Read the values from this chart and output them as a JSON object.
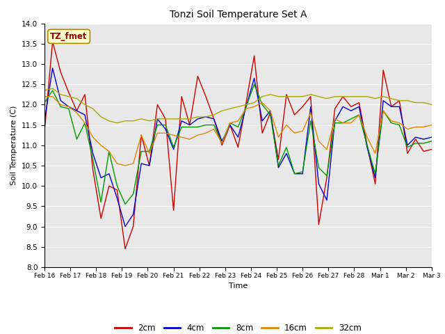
{
  "title": "Tonzi Soil Temperature Set A",
  "xlabel": "Time",
  "ylabel": "Soil Temperature (C)",
  "ylim": [
    8.0,
    14.0
  ],
  "yticks": [
    8.0,
    8.5,
    9.0,
    9.5,
    10.0,
    10.5,
    11.0,
    11.5,
    12.0,
    12.5,
    13.0,
    13.5,
    14.0
  ],
  "x_labels": [
    "Feb 16",
    "Feb 17",
    "Feb 18",
    "Feb 19",
    "Feb 20",
    "Feb 21",
    "Feb 22",
    "Feb 23",
    "Feb 24",
    "Feb 25",
    "Feb 26",
    "Feb 27",
    "Feb 28",
    "Mar 1",
    "Mar 2",
    "Mar 3"
  ],
  "legend_entries": [
    "2cm",
    "4cm",
    "8cm",
    "16cm",
    "32cm"
  ],
  "colors": [
    "#cc0000",
    "#0000cc",
    "#009900",
    "#dd8800",
    "#aaaa00"
  ],
  "annotation_text": "TZ_fmet",
  "annotation_color": "#990000",
  "annotation_bg": "#ffffcc",
  "annotation_border": "#aa8800",
  "background_color": "#e8e8e8",
  "series_2cm": [
    11.35,
    13.55,
    12.8,
    12.3,
    11.85,
    12.25,
    10.4,
    9.2,
    10.0,
    9.9,
    8.45,
    9.0,
    11.25,
    10.5,
    12.0,
    11.65,
    9.4,
    12.2,
    11.5,
    12.7,
    12.2,
    11.65,
    11.0,
    11.5,
    10.95,
    12.05,
    13.2,
    11.3,
    11.8,
    10.65,
    12.25,
    11.75,
    11.95,
    12.2,
    9.05,
    10.2,
    11.9,
    12.2,
    11.95,
    12.05,
    11.0,
    10.05,
    12.85,
    11.95,
    12.1,
    10.8,
    11.15,
    10.85,
    10.9
  ],
  "series_4cm": [
    11.6,
    12.9,
    12.1,
    11.95,
    11.85,
    11.75,
    10.8,
    10.2,
    10.3,
    9.7,
    9.0,
    9.3,
    10.55,
    10.5,
    11.65,
    11.4,
    10.9,
    11.6,
    11.5,
    11.65,
    11.7,
    11.65,
    11.1,
    11.5,
    11.2,
    11.95,
    12.65,
    11.6,
    11.85,
    10.45,
    10.8,
    10.3,
    10.3,
    11.95,
    10.05,
    9.65,
    11.6,
    11.95,
    11.85,
    11.95,
    10.95,
    10.2,
    12.1,
    11.95,
    11.95,
    11.0,
    11.2,
    11.15,
    11.2
  ],
  "series_8cm": [
    12.05,
    12.35,
    11.95,
    11.9,
    11.15,
    11.55,
    10.65,
    9.6,
    10.85,
    10.0,
    9.55,
    9.8,
    10.85,
    10.85,
    11.5,
    11.5,
    10.95,
    11.45,
    11.45,
    11.45,
    11.5,
    11.5,
    11.05,
    11.55,
    11.45,
    11.95,
    12.5,
    12.0,
    11.75,
    10.5,
    10.95,
    10.3,
    10.35,
    11.6,
    10.45,
    10.25,
    11.55,
    11.55,
    11.65,
    11.75,
    11.0,
    10.3,
    11.85,
    11.55,
    11.5,
    10.95,
    11.05,
    11.05,
    11.1
  ],
  "series_16cm": [
    12.2,
    12.2,
    12.0,
    11.95,
    11.8,
    11.55,
    11.2,
    11.0,
    10.85,
    10.55,
    10.5,
    10.55,
    11.25,
    10.8,
    11.3,
    11.3,
    11.25,
    11.2,
    11.15,
    11.25,
    11.3,
    11.4,
    11.05,
    11.55,
    11.6,
    11.9,
    11.95,
    12.05,
    11.85,
    11.2,
    11.5,
    11.3,
    11.35,
    11.8,
    11.1,
    10.9,
    11.65,
    11.55,
    11.55,
    11.75,
    11.2,
    10.8,
    11.85,
    11.6,
    11.55,
    11.4,
    11.45,
    11.45,
    11.5
  ],
  "series_32cm": [
    12.35,
    12.4,
    12.25,
    12.2,
    12.15,
    12.0,
    11.9,
    11.7,
    11.6,
    11.55,
    11.6,
    11.6,
    11.65,
    11.6,
    11.65,
    11.65,
    11.65,
    11.65,
    11.65,
    11.7,
    11.7,
    11.75,
    11.85,
    11.9,
    11.95,
    12.0,
    12.05,
    12.2,
    12.25,
    12.2,
    12.2,
    12.2,
    12.2,
    12.25,
    12.2,
    12.15,
    12.2,
    12.2,
    12.2,
    12.2,
    12.2,
    12.15,
    12.2,
    12.15,
    12.1,
    12.1,
    12.05,
    12.05,
    12.0
  ],
  "figsize": [
    6.4,
    4.8
  ],
  "dpi": 100
}
